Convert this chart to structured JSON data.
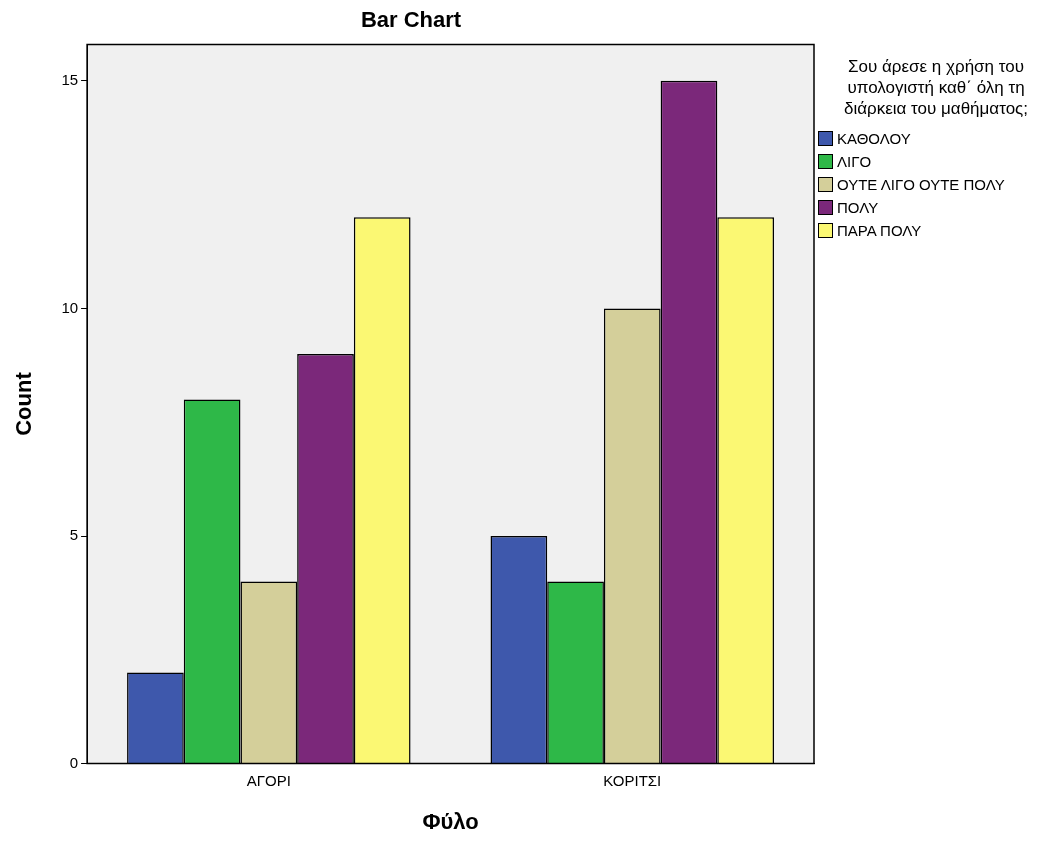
{
  "chart_data": {
    "type": "bar",
    "title": "Bar Chart",
    "xlabel": "Φύλο",
    "ylabel": "Count",
    "legend_title": "Σου άρεσε η χρήση του υπολογιστή καθ΄ όλη τη διάρκεια του μαθήματος;",
    "categories": [
      "ΑΓΟΡΙ",
      "ΚΟΡΙΤΣΙ"
    ],
    "series": [
      {
        "name": "ΚΑΘΟΛΟΥ",
        "color": "#3e58ac",
        "values": [
          2,
          5
        ]
      },
      {
        "name": "ΛΙΓΟ",
        "color": "#2eb848",
        "values": [
          8,
          4
        ]
      },
      {
        "name": "ΟΥΤΕ ΛΙΓΟ ΟΥΤΕ ΠΟΛΥ",
        "color": "#d4cf9a",
        "values": [
          4,
          10
        ]
      },
      {
        "name": "ΠΟΛΥ",
        "color": "#7b287a",
        "values": [
          9,
          15
        ]
      },
      {
        "name": "ΠΑΡΑ ΠΟΛΥ",
        "color": "#fbf873",
        "values": [
          12,
          12
        ]
      }
    ],
    "ylim": [
      0,
      15.8
    ],
    "yticks": [
      0,
      5,
      10,
      15
    ],
    "grid": false,
    "legend": "right"
  }
}
